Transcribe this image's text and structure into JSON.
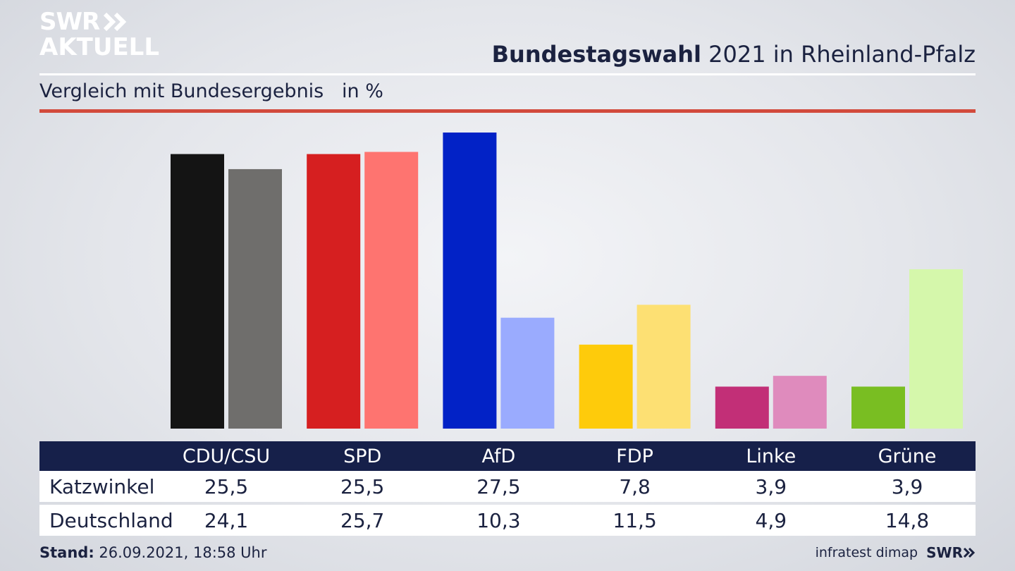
{
  "header": {
    "logo_line1": "SWR",
    "logo_line2": "AKTUELL",
    "title_bold": "Bundestagswahl",
    "title_rest": " 2021 in Rheinland-Pfalz",
    "subtitle": "Vergleich mit Bundesergebnis   in %"
  },
  "chart_data": {
    "type": "bar",
    "categories": [
      "CDU/CSU",
      "SPD",
      "AfD",
      "FDP",
      "Linke",
      "Grüne"
    ],
    "series": [
      {
        "name": "Katzwinkel",
        "values": [
          25.5,
          25.5,
          27.5,
          7.8,
          3.9,
          3.9
        ],
        "colors": [
          "#141414",
          "#d61f20",
          "#0222c6",
          "#fecb0b",
          "#c22f77",
          "#79be22"
        ]
      },
      {
        "name": "Deutschland",
        "values": [
          24.1,
          25.7,
          10.3,
          11.5,
          4.9,
          14.8
        ],
        "colors": [
          "#6f6e6c",
          "#fe7470",
          "#9aabfe",
          "#fde073",
          "#df8bbd",
          "#d5f7ab"
        ]
      }
    ],
    "ylim": [
      0,
      27.5
    ],
    "value_labels": {
      "Katzwinkel": [
        "25,5",
        "25,5",
        "27,5",
        "7,8",
        "3,9",
        "3,9"
      ],
      "Deutschland": [
        "24,1",
        "25,7",
        "10,3",
        "11,5",
        "4,9",
        "14,8"
      ]
    }
  },
  "footer": {
    "stand_label": "Stand:",
    "stand_value": " 26.09.2021, 18:58 Uhr",
    "source": "infratest dimap",
    "brand": "SWR"
  },
  "colors": {
    "navy": "#16204a",
    "accent_red": "#d24a3c"
  }
}
